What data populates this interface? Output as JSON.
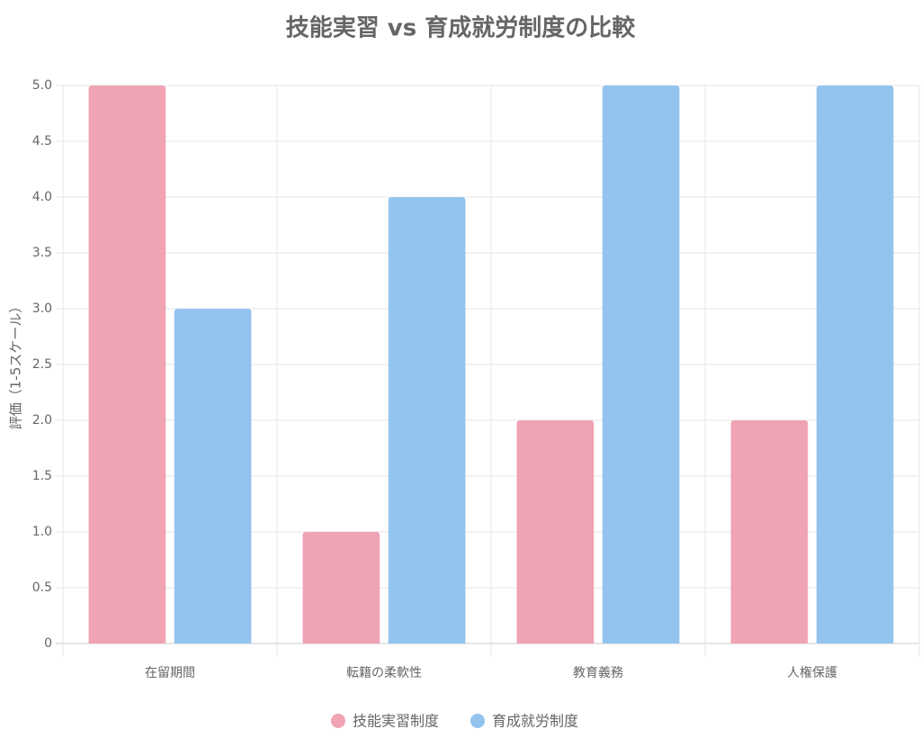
{
  "chart_data": {
    "type": "bar",
    "title": "技能実習 vs 育成就労制度の比較",
    "y_label": "評価（1-5スケール）",
    "categories": [
      "在留期間",
      "転籍の柔軟性",
      "教育義務",
      "人権保護"
    ],
    "series": [
      {
        "name": "技能実習制度",
        "color": "#f0a3b3",
        "values": [
          5,
          1,
          2,
          2
        ]
      },
      {
        "name": "育成就労制度",
        "color": "#93c4ee",
        "values": [
          3,
          4,
          5,
          5
        ]
      }
    ],
    "ylim": [
      0,
      5
    ],
    "yticks": [
      0,
      0.5,
      {
        "value": 1,
        "label": "1.0"
      },
      1.5,
      {
        "value": 2,
        "label": "2.0"
      },
      2.5,
      {
        "value": 3,
        "label": "3.0"
      },
      3.5,
      {
        "value": 4,
        "label": "4.0"
      },
      4.5,
      {
        "value": 5,
        "label": "5.0"
      }
    ],
    "grid": true,
    "legend": "bottom"
  }
}
